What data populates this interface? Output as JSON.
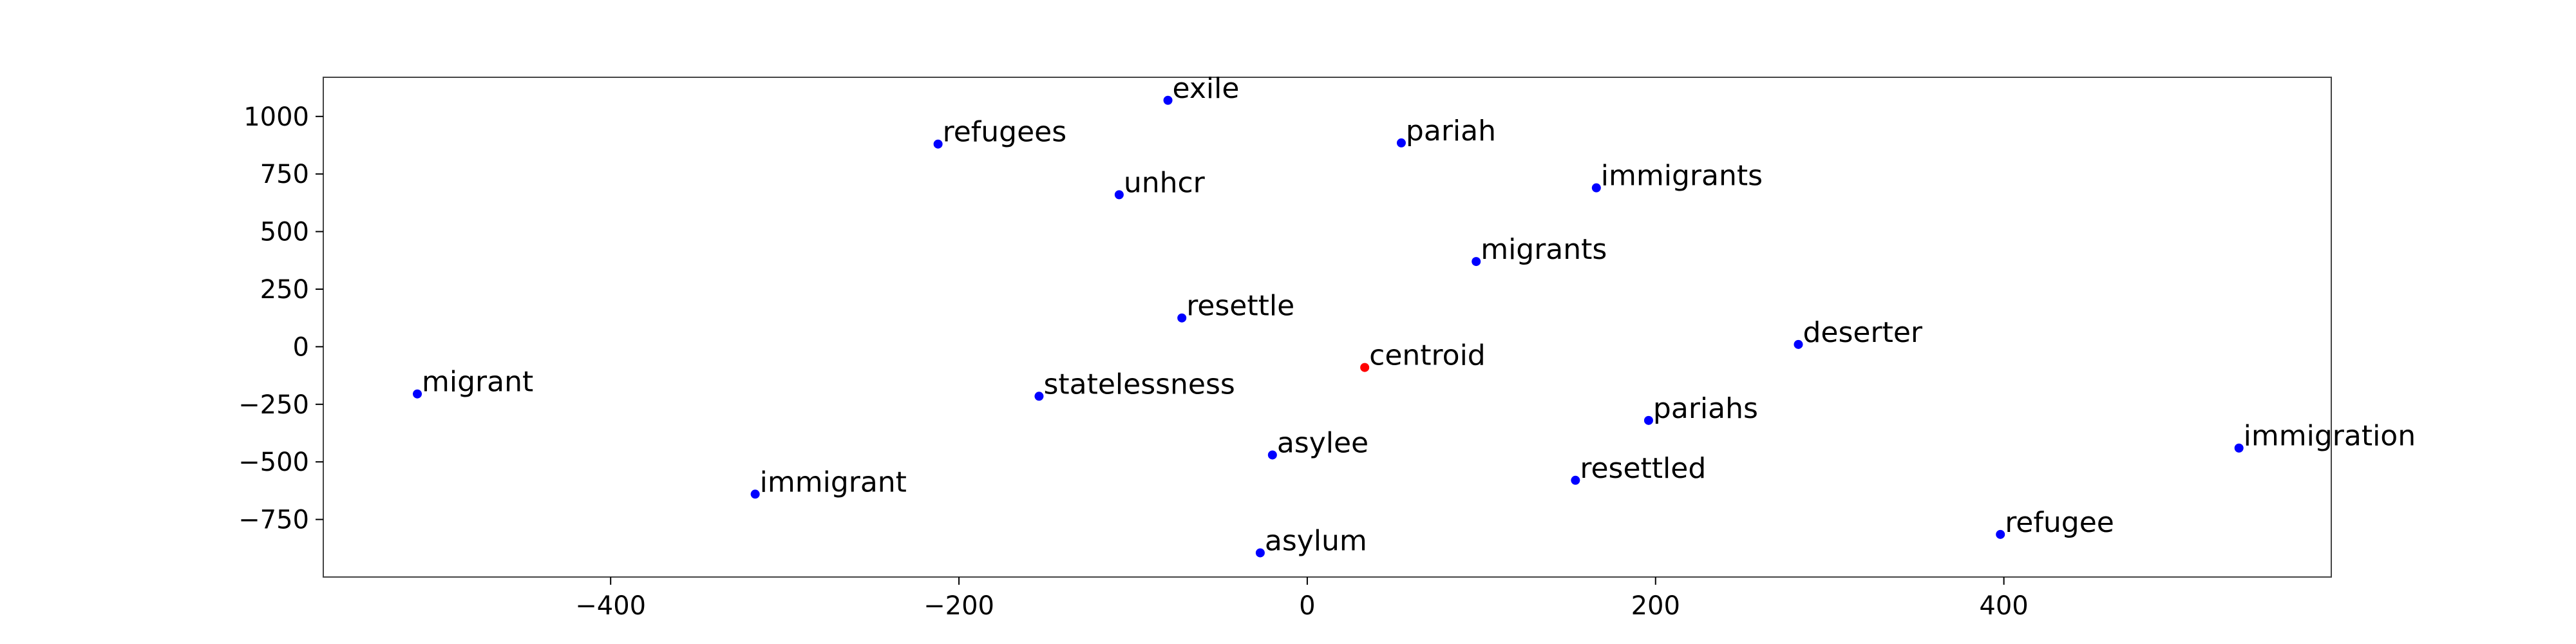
{
  "chart_data": {
    "type": "scatter",
    "title": "",
    "xlabel": "",
    "ylabel": "",
    "xlim": [
      -565,
      588
    ],
    "ylim": [
      -1000,
      1170
    ],
    "x_ticks": [
      -400,
      -200,
      0,
      200,
      400
    ],
    "y_ticks": [
      -750,
      -500,
      -250,
      0,
      250,
      500,
      750,
      1000
    ],
    "tick_labels": {
      "x": [
        "−400",
        "−200",
        "0",
        "200",
        "400"
      ],
      "y": [
        "−750",
        "−500",
        "−250",
        "0",
        "250",
        "500",
        "750",
        "1000"
      ]
    },
    "grid": false,
    "colors": {
      "word": "#0000ff",
      "centroid": "#ff0000"
    },
    "points": [
      {
        "label": "exile",
        "x": -80,
        "y": 1070,
        "color": "#0000ff"
      },
      {
        "label": "refugees",
        "x": -212,
        "y": 880,
        "color": "#0000ff"
      },
      {
        "label": "pariah",
        "x": 54,
        "y": 885,
        "color": "#0000ff"
      },
      {
        "label": "unhcr",
        "x": -108,
        "y": 660,
        "color": "#0000ff"
      },
      {
        "label": "immigrants",
        "x": 166,
        "y": 690,
        "color": "#0000ff"
      },
      {
        "label": "migrants",
        "x": 97,
        "y": 370,
        "color": "#0000ff"
      },
      {
        "label": "resettle",
        "x": -72,
        "y": 125,
        "color": "#0000ff"
      },
      {
        "label": "deserter",
        "x": 282,
        "y": 10,
        "color": "#0000ff"
      },
      {
        "label": "centroid",
        "x": 33,
        "y": -90,
        "color": "#ff0000"
      },
      {
        "label": "migrant",
        "x": -511,
        "y": -205,
        "color": "#0000ff"
      },
      {
        "label": "statelessness",
        "x": -154,
        "y": -215,
        "color": "#0000ff"
      },
      {
        "label": "pariahs",
        "x": 196,
        "y": -320,
        "color": "#0000ff"
      },
      {
        "label": "immigration",
        "x": 535,
        "y": -440,
        "color": "#0000ff"
      },
      {
        "label": "asylee",
        "x": -20,
        "y": -470,
        "color": "#0000ff"
      },
      {
        "label": "resettled",
        "x": 154,
        "y": -580,
        "color": "#0000ff"
      },
      {
        "label": "immigrant",
        "x": -317,
        "y": -640,
        "color": "#0000ff"
      },
      {
        "label": "refugee",
        "x": 398,
        "y": -815,
        "color": "#0000ff"
      },
      {
        "label": "asylum",
        "x": -27,
        "y": -895,
        "color": "#0000ff"
      }
    ]
  }
}
